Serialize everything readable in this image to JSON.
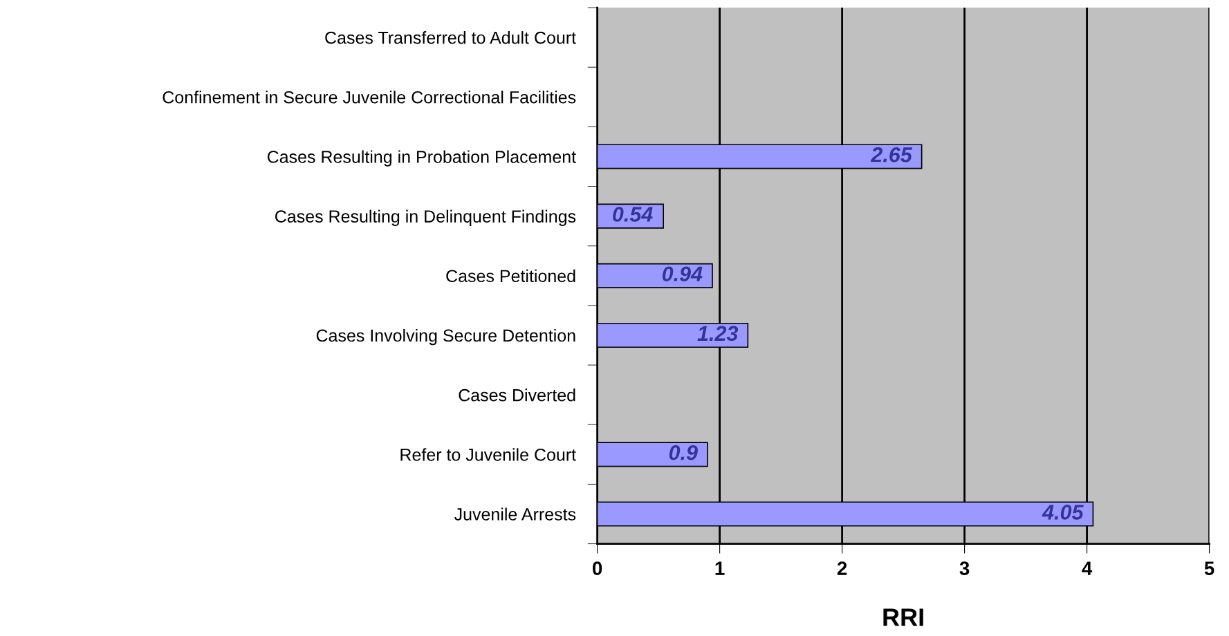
{
  "chart_data": {
    "type": "bar",
    "orientation": "horizontal",
    "xlabel": "RRI",
    "categories": [
      "Cases Transferred to Adult Court",
      "Confinement in Secure Juvenile Correctional Facilities",
      "Cases Resulting in Probation Placement",
      "Cases Resulting in Delinquent Findings",
      "Cases Petitioned",
      "Cases Involving Secure Detention",
      "Cases Diverted",
      "Refer to Juvenile Court",
      "Juvenile Arrests"
    ],
    "values": [
      null,
      null,
      2.65,
      0.54,
      0.94,
      1.23,
      null,
      0.9,
      4.05
    ],
    "color": "#9999ff",
    "xlim": [
      0,
      5
    ],
    "xticks": [
      0,
      1,
      2,
      3,
      4,
      5
    ],
    "grid": "x",
    "data_labels": true
  }
}
